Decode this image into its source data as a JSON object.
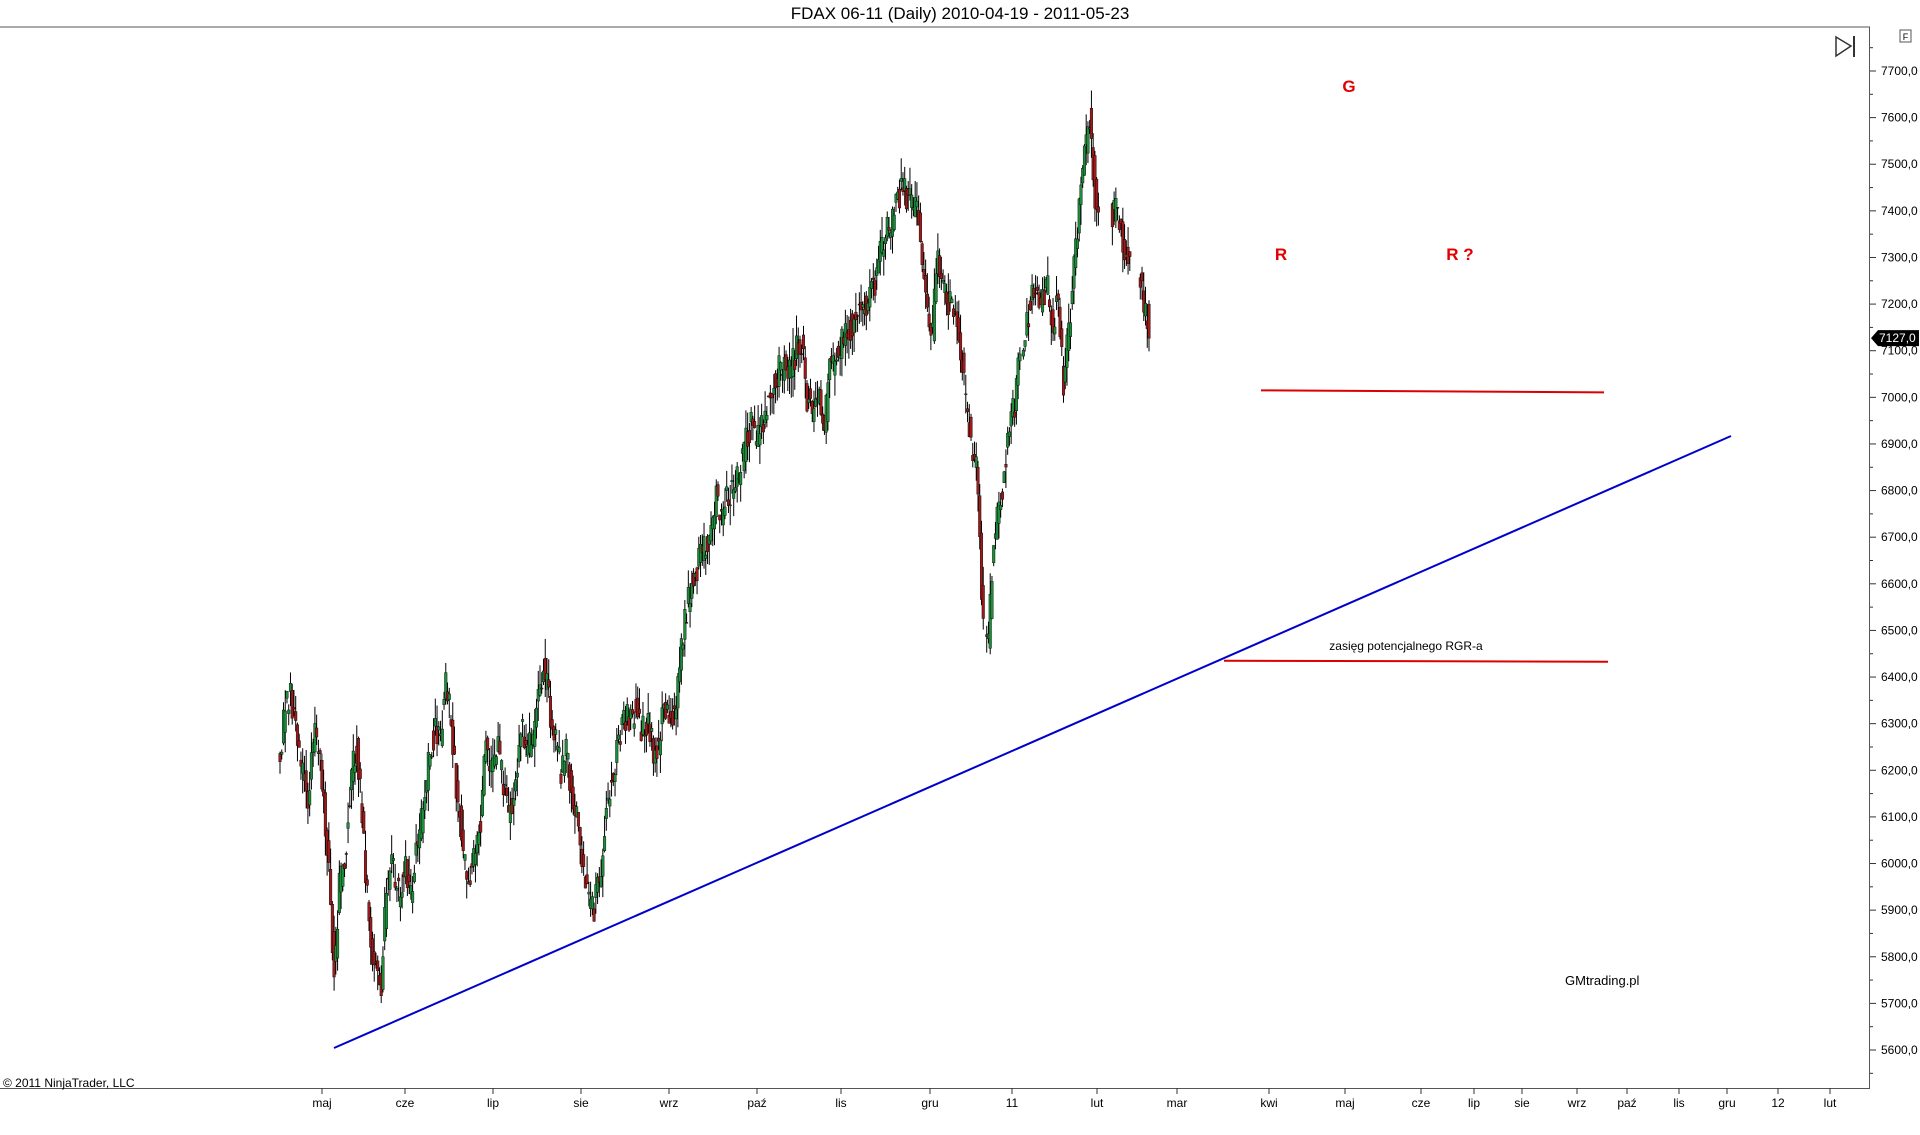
{
  "window": {
    "title": "FDAX 06-11 (Daily)  2010-04-19 - 2011-05-23",
    "copyright": "© 2011 NinjaTrader, LLC",
    "panel_button_icon": "f-panel-icon",
    "scroll_end_icon": "scroll-to-end-icon"
  },
  "chart_data": {
    "type": "candlestick",
    "title": "FDAX 06-11 (Daily)  2010-04-19 - 2011-05-23",
    "instrument": "FDAX 06-11",
    "period": "Daily",
    "date_range": [
      "2010-04-19",
      "2011-05-23"
    ],
    "ylim": [
      5550,
      7750
    ],
    "y_ticks": [
      "5600,0",
      "5700,0",
      "5800,0",
      "5900,0",
      "6000,0",
      "6100,0",
      "6200,0",
      "6300,0",
      "6400,0",
      "6500,0",
      "6600,0",
      "6700,0",
      "6800,0",
      "6900,0",
      "7000,0",
      "7100,0",
      "7200,0",
      "7300,0",
      "7400,0",
      "7500,0",
      "7600,0",
      "7700,0"
    ],
    "x_ticks": [
      "maj",
      "cze",
      "lip",
      "sie",
      "wrz",
      "paź",
      "lis",
      "gru",
      "11",
      "lut",
      "mar",
      "kwi",
      "maj",
      "cze",
      "lip",
      "sie",
      "wrz",
      "paź",
      "lis",
      "gru",
      "12",
      "lut"
    ],
    "last_price": "7127,0",
    "colors": {
      "up": "#1e8c3a",
      "down": "#9b1b1b",
      "wick": "#000000",
      "trendline": "#0000cc",
      "level": "#dd0000",
      "price_tag": "#000000"
    },
    "grid": false,
    "legend": "none",
    "series": [
      {
        "close_path": [
          [
            0,
            6230
          ],
          [
            3,
            6330
          ],
          [
            6,
            6370
          ],
          [
            8,
            6300
          ],
          [
            12,
            6200
          ],
          [
            16,
            6150
          ],
          [
            20,
            6280
          ],
          [
            24,
            6180
          ],
          [
            28,
            6000
          ],
          [
            31,
            5760
          ],
          [
            34,
            5950
          ],
          [
            37,
            6000
          ],
          [
            41,
            6200
          ],
          [
            44,
            6250
          ],
          [
            47,
            6100
          ],
          [
            51,
            5870
          ],
          [
            54,
            5780
          ],
          [
            58,
            5740
          ],
          [
            61,
            5950
          ],
          [
            64,
            6000
          ],
          [
            68,
            5930
          ],
          [
            72,
            6000
          ],
          [
            75,
            5930
          ],
          [
            78,
            6050
          ],
          [
            82,
            6100
          ],
          [
            86,
            6250
          ],
          [
            89,
            6280
          ],
          [
            92,
            6280
          ],
          [
            95,
            6390
          ],
          [
            98,
            6300
          ],
          [
            102,
            6130
          ],
          [
            105,
            6030
          ],
          [
            108,
            5950
          ],
          [
            112,
            6050
          ],
          [
            115,
            6100
          ],
          [
            118,
            6250
          ],
          [
            122,
            6200
          ],
          [
            125,
            6250
          ],
          [
            128,
            6170
          ],
          [
            131,
            6100
          ],
          [
            134,
            6150
          ],
          [
            138,
            6290
          ],
          [
            141,
            6250
          ],
          [
            145,
            6250
          ],
          [
            148,
            6370
          ],
          [
            151,
            6420
          ],
          [
            154,
            6350
          ],
          [
            157,
            6270
          ],
          [
            161,
            6200
          ],
          [
            164,
            6250
          ],
          [
            167,
            6140
          ],
          [
            170,
            6090
          ],
          [
            174,
            6000
          ],
          [
            177,
            5920
          ],
          [
            180,
            5900
          ],
          [
            184,
            6000
          ],
          [
            187,
            6110
          ],
          [
            191,
            6200
          ],
          [
            194,
            6270
          ],
          [
            197,
            6330
          ],
          [
            200,
            6300
          ],
          [
            204,
            6330
          ],
          [
            207,
            6290
          ],
          [
            211,
            6310
          ],
          [
            214,
            6230
          ],
          [
            217,
            6250
          ],
          [
            220,
            6350
          ],
          [
            223,
            6300
          ],
          [
            227,
            6350
          ],
          [
            230,
            6450
          ],
          [
            233,
            6550
          ],
          [
            236,
            6600
          ],
          [
            240,
            6650
          ],
          [
            243,
            6670
          ],
          [
            246,
            6700
          ],
          [
            250,
            6790
          ],
          [
            253,
            6750
          ],
          [
            256,
            6790
          ],
          [
            260,
            6800
          ],
          [
            263,
            6830
          ],
          [
            266,
            6890
          ],
          [
            270,
            6940
          ],
          [
            273,
            6900
          ],
          [
            276,
            6930
          ],
          [
            280,
            7000
          ],
          [
            283,
            7030
          ],
          [
            286,
            7060
          ],
          [
            290,
            7070
          ],
          [
            293,
            7070
          ],
          [
            296,
            7100
          ],
          [
            299,
            7120
          ],
          [
            302,
            7000
          ],
          [
            306,
            6960
          ],
          [
            309,
            7000
          ],
          [
            312,
            6920
          ],
          [
            315,
            7080
          ],
          [
            318,
            7070
          ],
          [
            322,
            7120
          ],
          [
            325,
            7130
          ],
          [
            328,
            7160
          ],
          [
            332,
            7180
          ],
          [
            335,
            7190
          ],
          [
            338,
            7230
          ],
          [
            341,
            7250
          ],
          [
            344,
            7310
          ],
          [
            348,
            7360
          ],
          [
            351,
            7380
          ],
          [
            354,
            7430
          ],
          [
            357,
            7440
          ],
          [
            361,
            7430
          ],
          [
            364,
            7410
          ],
          [
            367,
            7350
          ],
          [
            370,
            7200
          ],
          [
            374,
            7150
          ],
          [
            377,
            7300
          ],
          [
            380,
            7250
          ],
          [
            383,
            7200
          ],
          [
            387,
            7190
          ],
          [
            390,
            7100
          ],
          [
            393,
            7000
          ],
          [
            396,
            6900
          ],
          [
            399,
            6860
          ],
          [
            403,
            6500
          ],
          [
            406,
            6470
          ],
          [
            409,
            6700
          ],
          [
            412,
            6750
          ],
          [
            415,
            6830
          ],
          [
            418,
            6930
          ],
          [
            421,
            6980
          ],
          [
            424,
            7100
          ],
          [
            427,
            7140
          ],
          [
            430,
            7200
          ],
          [
            433,
            7240
          ],
          [
            436,
            7200
          ],
          [
            440,
            7230
          ],
          [
            443,
            7160
          ],
          [
            446,
            7210
          ],
          [
            449,
            7030
          ],
          [
            452,
            7140
          ],
          [
            455,
            7270
          ],
          [
            458,
            7410
          ],
          [
            461,
            7520
          ],
          [
            464,
            7590
          ],
          [
            467,
            7440
          ],
          [
            470,
            7380
          ],
          [
            474,
            7500
          ],
          [
            477,
            7400
          ],
          [
            480,
            7400
          ],
          [
            483,
            7340
          ],
          [
            486,
            7290
          ],
          [
            489,
            7370
          ],
          [
            492,
            7270
          ],
          [
            495,
            7200
          ],
          [
            498,
            7127
          ]
        ],
        "last_candle": {
          "open": 7200,
          "high": 7210,
          "low": 7120,
          "close": 7127
        }
      }
    ],
    "annotations": {
      "waves": [
        {
          "text": "R",
          "x": 1050,
          "y": 7270
        },
        {
          "text": "G",
          "x": 1103,
          "y": 7640
        },
        {
          "text": "R ?",
          "x": 1195,
          "y": 7270
        }
      ],
      "trendline_label": "",
      "note": "zasięg potencjalnego RGR-a",
      "neckline_level": 7015,
      "target_level": 6435,
      "trendline": {
        "from": [
          "2010-05-25",
          5610
        ],
        "to": [
          "2011-11",
          6910
        ]
      },
      "brand": "GMtrading.pl"
    }
  }
}
